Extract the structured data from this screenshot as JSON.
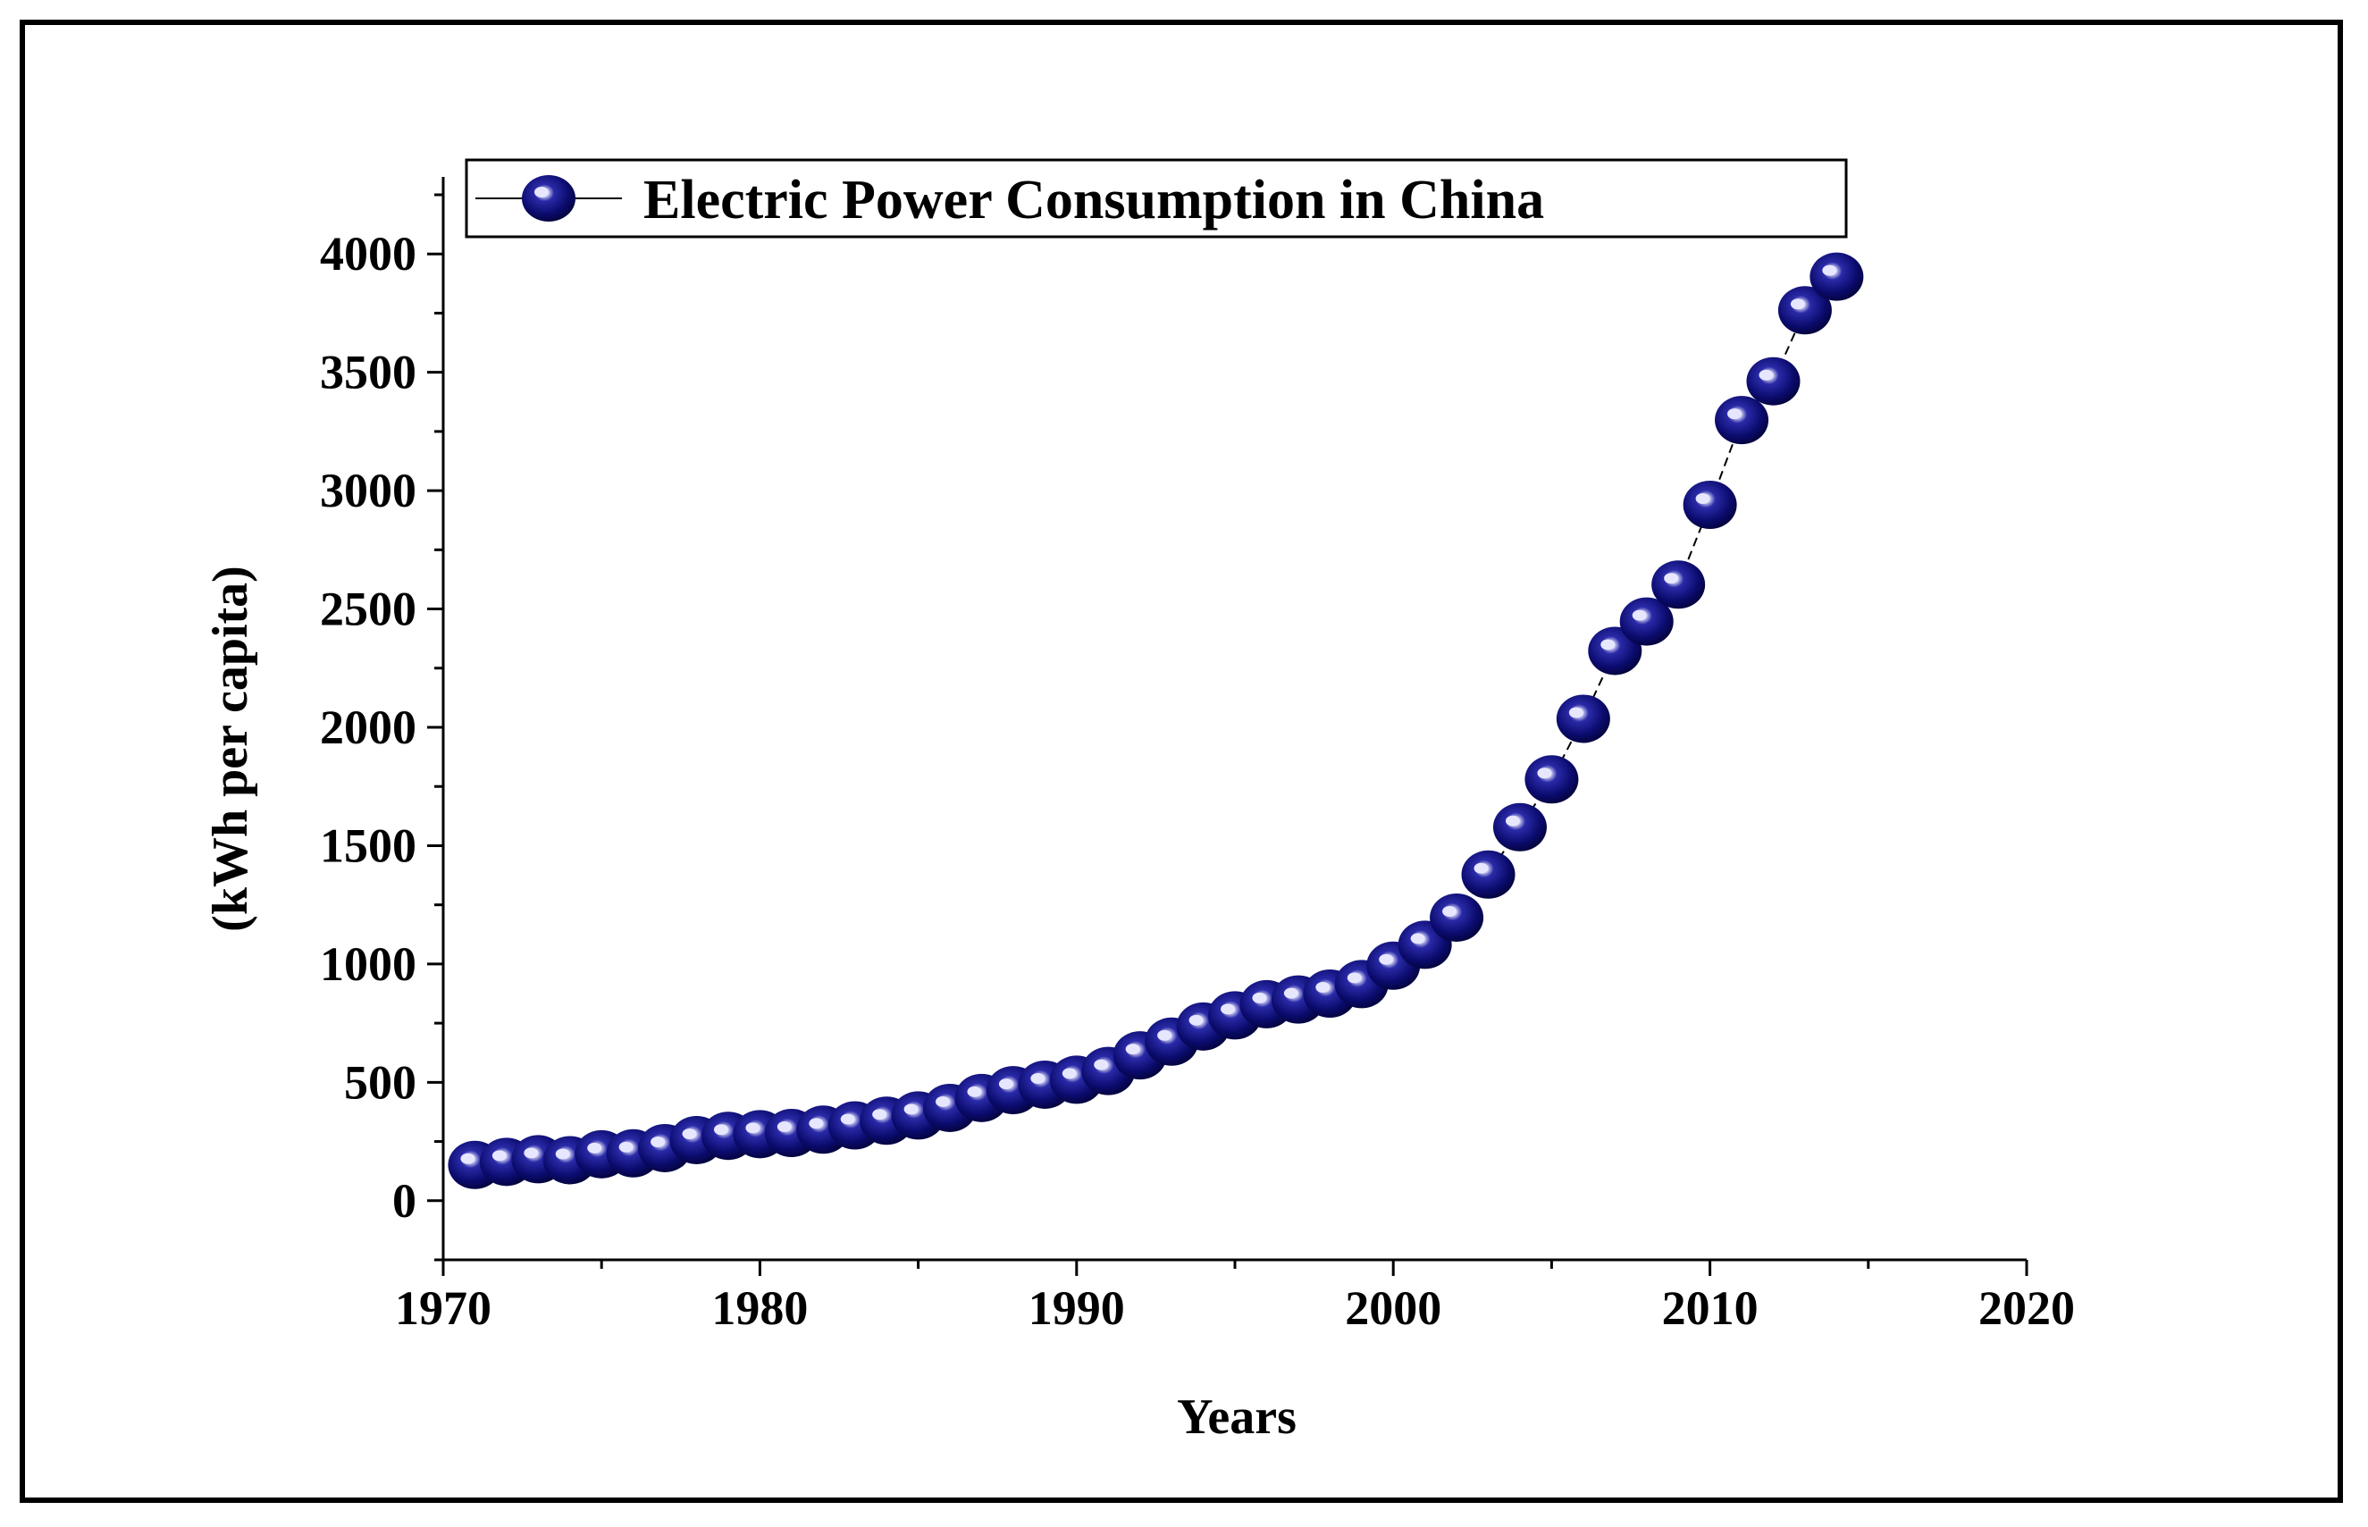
{
  "chart_data": {
    "type": "scatter",
    "title": "",
    "xlabel": "Years",
    "ylabel": "(kWh per capita)",
    "xlim": [
      1970,
      2020
    ],
    "ylim": [
      -250,
      4250
    ],
    "x_ticks": [
      1970,
      1980,
      1990,
      2000,
      2010,
      2020
    ],
    "y_ticks": [
      0,
      500,
      1000,
      1500,
      2000,
      2500,
      3000,
      3500,
      4000
    ],
    "legend_position": "top",
    "series": [
      {
        "name": "Electric Power Consumption in China",
        "color": "#0b0b6e",
        "x": [
          1971,
          1972,
          1973,
          1974,
          1975,
          1976,
          1977,
          1978,
          1979,
          1980,
          1981,
          1982,
          1983,
          1984,
          1985,
          1986,
          1987,
          1988,
          1989,
          1990,
          1991,
          1992,
          1993,
          1994,
          1995,
          1996,
          1997,
          1998,
          1999,
          2000,
          2001,
          2002,
          2003,
          2004,
          2005,
          2006,
          2007,
          2008,
          2009,
          2010,
          2011,
          2012,
          2013,
          2014
        ],
        "values": [
          151,
          164,
          175,
          171,
          196,
          200,
          222,
          256,
          274,
          281,
          286,
          300,
          318,
          338,
          360,
          392,
          434,
          467,
          490,
          511,
          548,
          614,
          672,
          736,
          783,
          830,
          850,
          875,
          915,
          993,
          1081,
          1196,
          1378,
          1578,
          1780,
          2036,
          2323,
          2447,
          2603,
          2940,
          3298,
          3462,
          3762,
          3904
        ]
      }
    ]
  }
}
